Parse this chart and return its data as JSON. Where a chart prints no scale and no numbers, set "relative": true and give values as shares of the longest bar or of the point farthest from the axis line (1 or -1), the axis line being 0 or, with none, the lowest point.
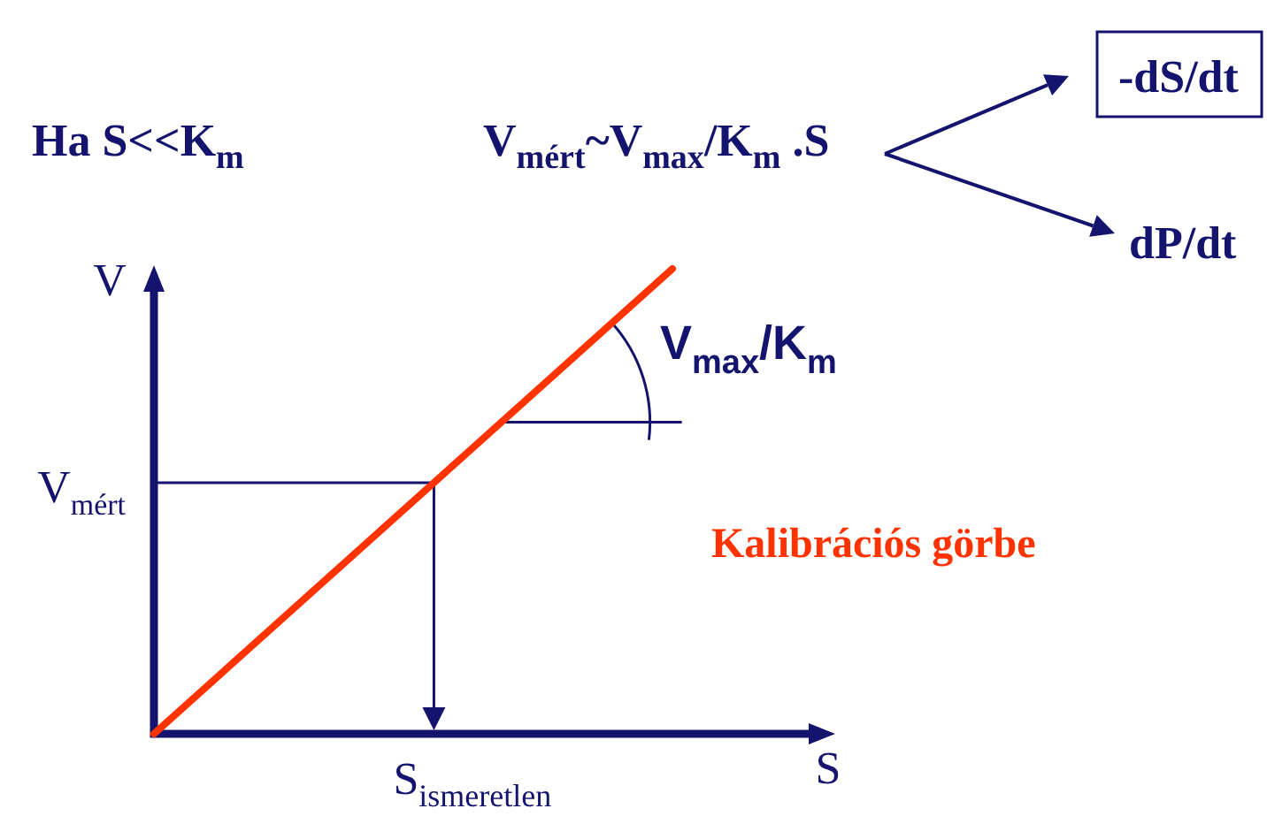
{
  "chart_data": {
    "type": "line",
    "relative": true,
    "xlabel": "S",
    "ylabel": "V",
    "categories": [
      null,
      null
    ],
    "series": [
      {
        "name": "Kalibrációs görbe",
        "color": "#ff3300",
        "values": [
          0,
          1
        ]
      }
    ],
    "ref_lines": [
      {
        "axis": "y",
        "value": 0.54,
        "label": "V$_{mért}$"
      }
    ],
    "annotations": [
      "Ha S<<K$_{m}$",
      "V$_{mért}$~V$_{max}$/K$_{m}$ .S",
      "-dS/dt",
      "dP/dt",
      "V$_{max}$/K$_{m}$",
      "S$_{ismeretlen}$"
    ]
  }
}
